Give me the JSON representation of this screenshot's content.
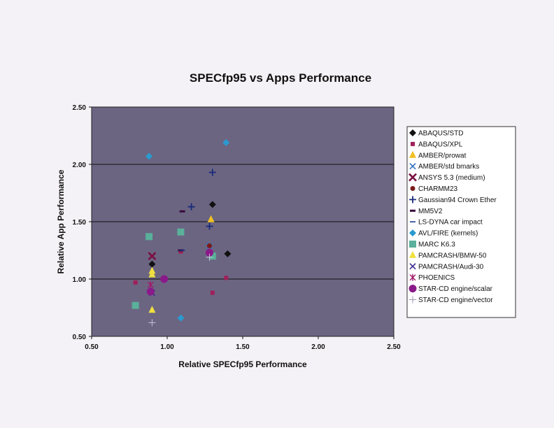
{
  "chart_data": {
    "type": "scatter",
    "title": "SPECfp95 vs Apps Performance",
    "xlabel": "Relative SPECfp95 Performance",
    "ylabel": "Relative App Performance",
    "xlim": [
      0.5,
      2.5
    ],
    "ylim": [
      0.5,
      2.5
    ],
    "xticks": [
      "0.50",
      "1.00",
      "1.50",
      "2.00",
      "2.50"
    ],
    "yticks": [
      "0.50",
      "1.00",
      "1.50",
      "2.00",
      "2.50"
    ],
    "grid": "horizontal",
    "legend": "right",
    "plot_bg": "#6b6582",
    "series": [
      {
        "name": "ABAQUS/STD",
        "marker": "diamond",
        "color": "#111111",
        "points": [
          [
            0.9,
            1.13
          ],
          [
            1.3,
            1.65
          ],
          [
            1.4,
            1.22
          ]
        ]
      },
      {
        "name": "ABAQUS/XPL",
        "marker": "square-small",
        "color": "#a0205a",
        "points": [
          [
            0.79,
            0.97
          ],
          [
            1.09,
            1.24
          ],
          [
            1.3,
            0.88
          ],
          [
            1.39,
            1.01
          ]
        ]
      },
      {
        "name": "AMBER/prowat",
        "marker": "triangle",
        "color": "#f0c020",
        "points": [
          [
            1.29,
            1.52
          ]
        ]
      },
      {
        "name": "AMBER/std bmarks",
        "marker": "x",
        "color": "#3070c0",
        "points": [
          [
            1.28,
            1.29
          ]
        ]
      },
      {
        "name": "ANSYS 5.3 (medium)",
        "marker": "xbig",
        "color": "#7a1040",
        "points": [
          [
            0.9,
            1.2
          ]
        ]
      },
      {
        "name": "CHARMM23",
        "marker": "circle-small",
        "color": "#7a1a1a",
        "points": [
          [
            1.28,
            1.29
          ]
        ]
      },
      {
        "name": "Gaussian94 Crown Ether",
        "marker": "plus",
        "color": "#1a2a7a",
        "points": [
          [
            1.16,
            1.63
          ],
          [
            1.28,
            1.46
          ],
          [
            1.3,
            1.93
          ]
        ]
      },
      {
        "name": "MM5V2",
        "marker": "dash-thick",
        "color": "#3a0a3a",
        "points": [
          [
            1.1,
            1.59
          ],
          [
            1.09,
            1.25
          ]
        ]
      },
      {
        "name": "LS-DYNA car impact",
        "marker": "dash",
        "color": "#1a3a8a",
        "points": [
          [
            1.1,
            1.25
          ]
        ]
      },
      {
        "name": "AVL/FIRE (kernels)",
        "marker": "diamond",
        "color": "#2a9ad0",
        "points": [
          [
            0.88,
            2.07
          ],
          [
            1.09,
            0.66
          ],
          [
            1.39,
            2.19
          ]
        ]
      },
      {
        "name": "MARC K6.3",
        "marker": "square",
        "color": "#5ab09a",
        "points": [
          [
            0.79,
            0.77
          ],
          [
            0.88,
            1.37
          ],
          [
            1.09,
            1.41
          ],
          [
            1.3,
            1.2
          ]
        ]
      },
      {
        "name": "PAMCRASH/BMW-50",
        "marker": "triangle",
        "color": "#f0e040",
        "points": [
          [
            0.9,
            1.04
          ],
          [
            0.9,
            1.07
          ],
          [
            0.9,
            0.73
          ]
        ]
      },
      {
        "name": "PAMCRASH/Audi-30",
        "marker": "x",
        "color": "#3a2a90",
        "points": [
          [
            0.9,
            0.88
          ]
        ]
      },
      {
        "name": "PHOENICS",
        "marker": "asterisk",
        "color": "#a01a6a",
        "points": [
          [
            0.89,
            0.95
          ]
        ]
      },
      {
        "name": "STAR-CD engine/scalar",
        "marker": "circle",
        "color": "#8a1a8a",
        "points": [
          [
            0.89,
            0.89
          ],
          [
            0.98,
            1.0
          ],
          [
            1.28,
            1.23
          ]
        ]
      },
      {
        "name": "STAR-CD engine/vector",
        "marker": "plus-thin",
        "color": "#c8c8d8",
        "points": [
          [
            0.9,
            0.62
          ],
          [
            1.28,
            1.19
          ]
        ]
      }
    ]
  }
}
